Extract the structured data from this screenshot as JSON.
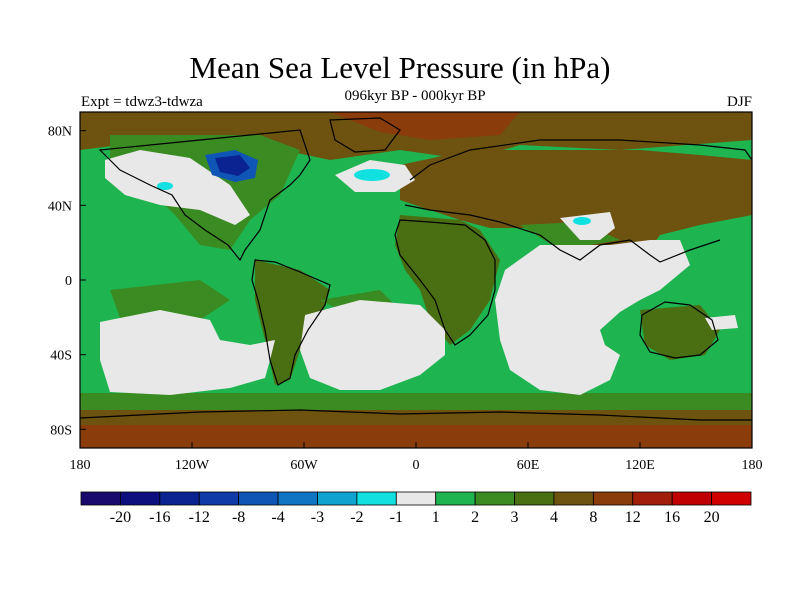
{
  "title": "Mean Sea Level Pressure (in hPa)",
  "subtitle": "096kyr BP - 000kyr BP",
  "experiment": "Expt = tdwz3-tdwza",
  "season": "DJF",
  "map": {
    "projection": "cylindrical equidistant",
    "lon_range": [
      -180,
      180
    ],
    "lat_range": [
      -90,
      90
    ],
    "lon_ticks": [
      "180",
      "120W",
      "60W",
      "0",
      "60E",
      "120E",
      "180"
    ],
    "lat_ticks": [
      "80N",
      "40N",
      "0",
      "40S",
      "80S"
    ]
  },
  "colorbar": {
    "labels": [
      "-20",
      "-16",
      "-12",
      "-8",
      "-4",
      "-3",
      "-2",
      "-1",
      "1",
      "2",
      "3",
      "4",
      "8",
      "12",
      "16",
      "20"
    ],
    "colors": [
      "#1a0a6e",
      "#0d0f7e",
      "#0b2390",
      "#0f3aa8",
      "#0f55b5",
      "#1076c4",
      "#10a3d0",
      "#10e0e0",
      "#e8e8e8",
      "#1eb450",
      "#3a8c22",
      "#4a6e12",
      "#6e5210",
      "#8a3c0a",
      "#a01e0a",
      "#c00000",
      "#d00000"
    ]
  },
  "palette": {
    "ocean_base": "#1eb450",
    "land_base": "#5e5e12",
    "grey": "#e8e8e8",
    "dark_green": "#3a8c22",
    "olive": "#4a6e12",
    "brown": "#6e5210",
    "rust": "#8a3c0a",
    "cyan": "#10e0e0",
    "blue": "#0f55b5",
    "navy": "#0b2390"
  }
}
